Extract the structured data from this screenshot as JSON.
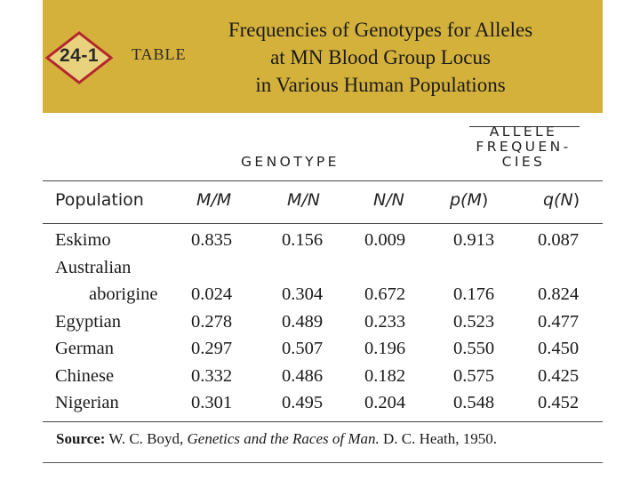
{
  "header": {
    "badge_number": "24-1",
    "badge_label": "TABLE",
    "title_lines": [
      "Frequencies of Genotypes for Alleles",
      "at MN Blood Group Locus",
      "in Various Human Populations"
    ],
    "band_color": "#d4b13a",
    "badge_fill": "#e9d27d",
    "badge_stroke": "#b3262f"
  },
  "groups": {
    "genotype": "GENOTYPE",
    "allele_lines": [
      "ALLELE",
      "FREQUEN-",
      "CIES"
    ]
  },
  "columns": {
    "population": "Population",
    "mm": "M/M",
    "mn": "M/N",
    "nn": "N/N",
    "pm_prefix": "p(",
    "pm_var": "M",
    "pm_suffix": ")",
    "qn_prefix": "q(",
    "qn_var": "N",
    "qn_suffix": ")"
  },
  "rows": [
    {
      "population": "Eskimo",
      "mm": "0.835",
      "mn": "0.156",
      "nn": "0.009",
      "pm": "0.913",
      "qn": "0.087"
    },
    {
      "population_pre": "Australian",
      "population": "aborigine",
      "mm": "0.024",
      "mn": "0.304",
      "nn": "0.672",
      "pm": "0.176",
      "qn": "0.824"
    },
    {
      "population": "Egyptian",
      "mm": "0.278",
      "mn": "0.489",
      "nn": "0.233",
      "pm": "0.523",
      "qn": "0.477"
    },
    {
      "population": "German",
      "mm": "0.297",
      "mn": "0.507",
      "nn": "0.196",
      "pm": "0.550",
      "qn": "0.450"
    },
    {
      "population": "Chinese",
      "mm": "0.332",
      "mn": "0.486",
      "nn": "0.182",
      "pm": "0.575",
      "qn": "0.425"
    },
    {
      "population": "Nigerian",
      "mm": "0.301",
      "mn": "0.495",
      "nn": "0.204",
      "pm": "0.548",
      "qn": "0.452"
    }
  ],
  "source": {
    "label": "Source:",
    "author": "W. C. Boyd, ",
    "book": "Genetics and the Races of Man.",
    "publisher": " D. C. Heath, 1950."
  }
}
